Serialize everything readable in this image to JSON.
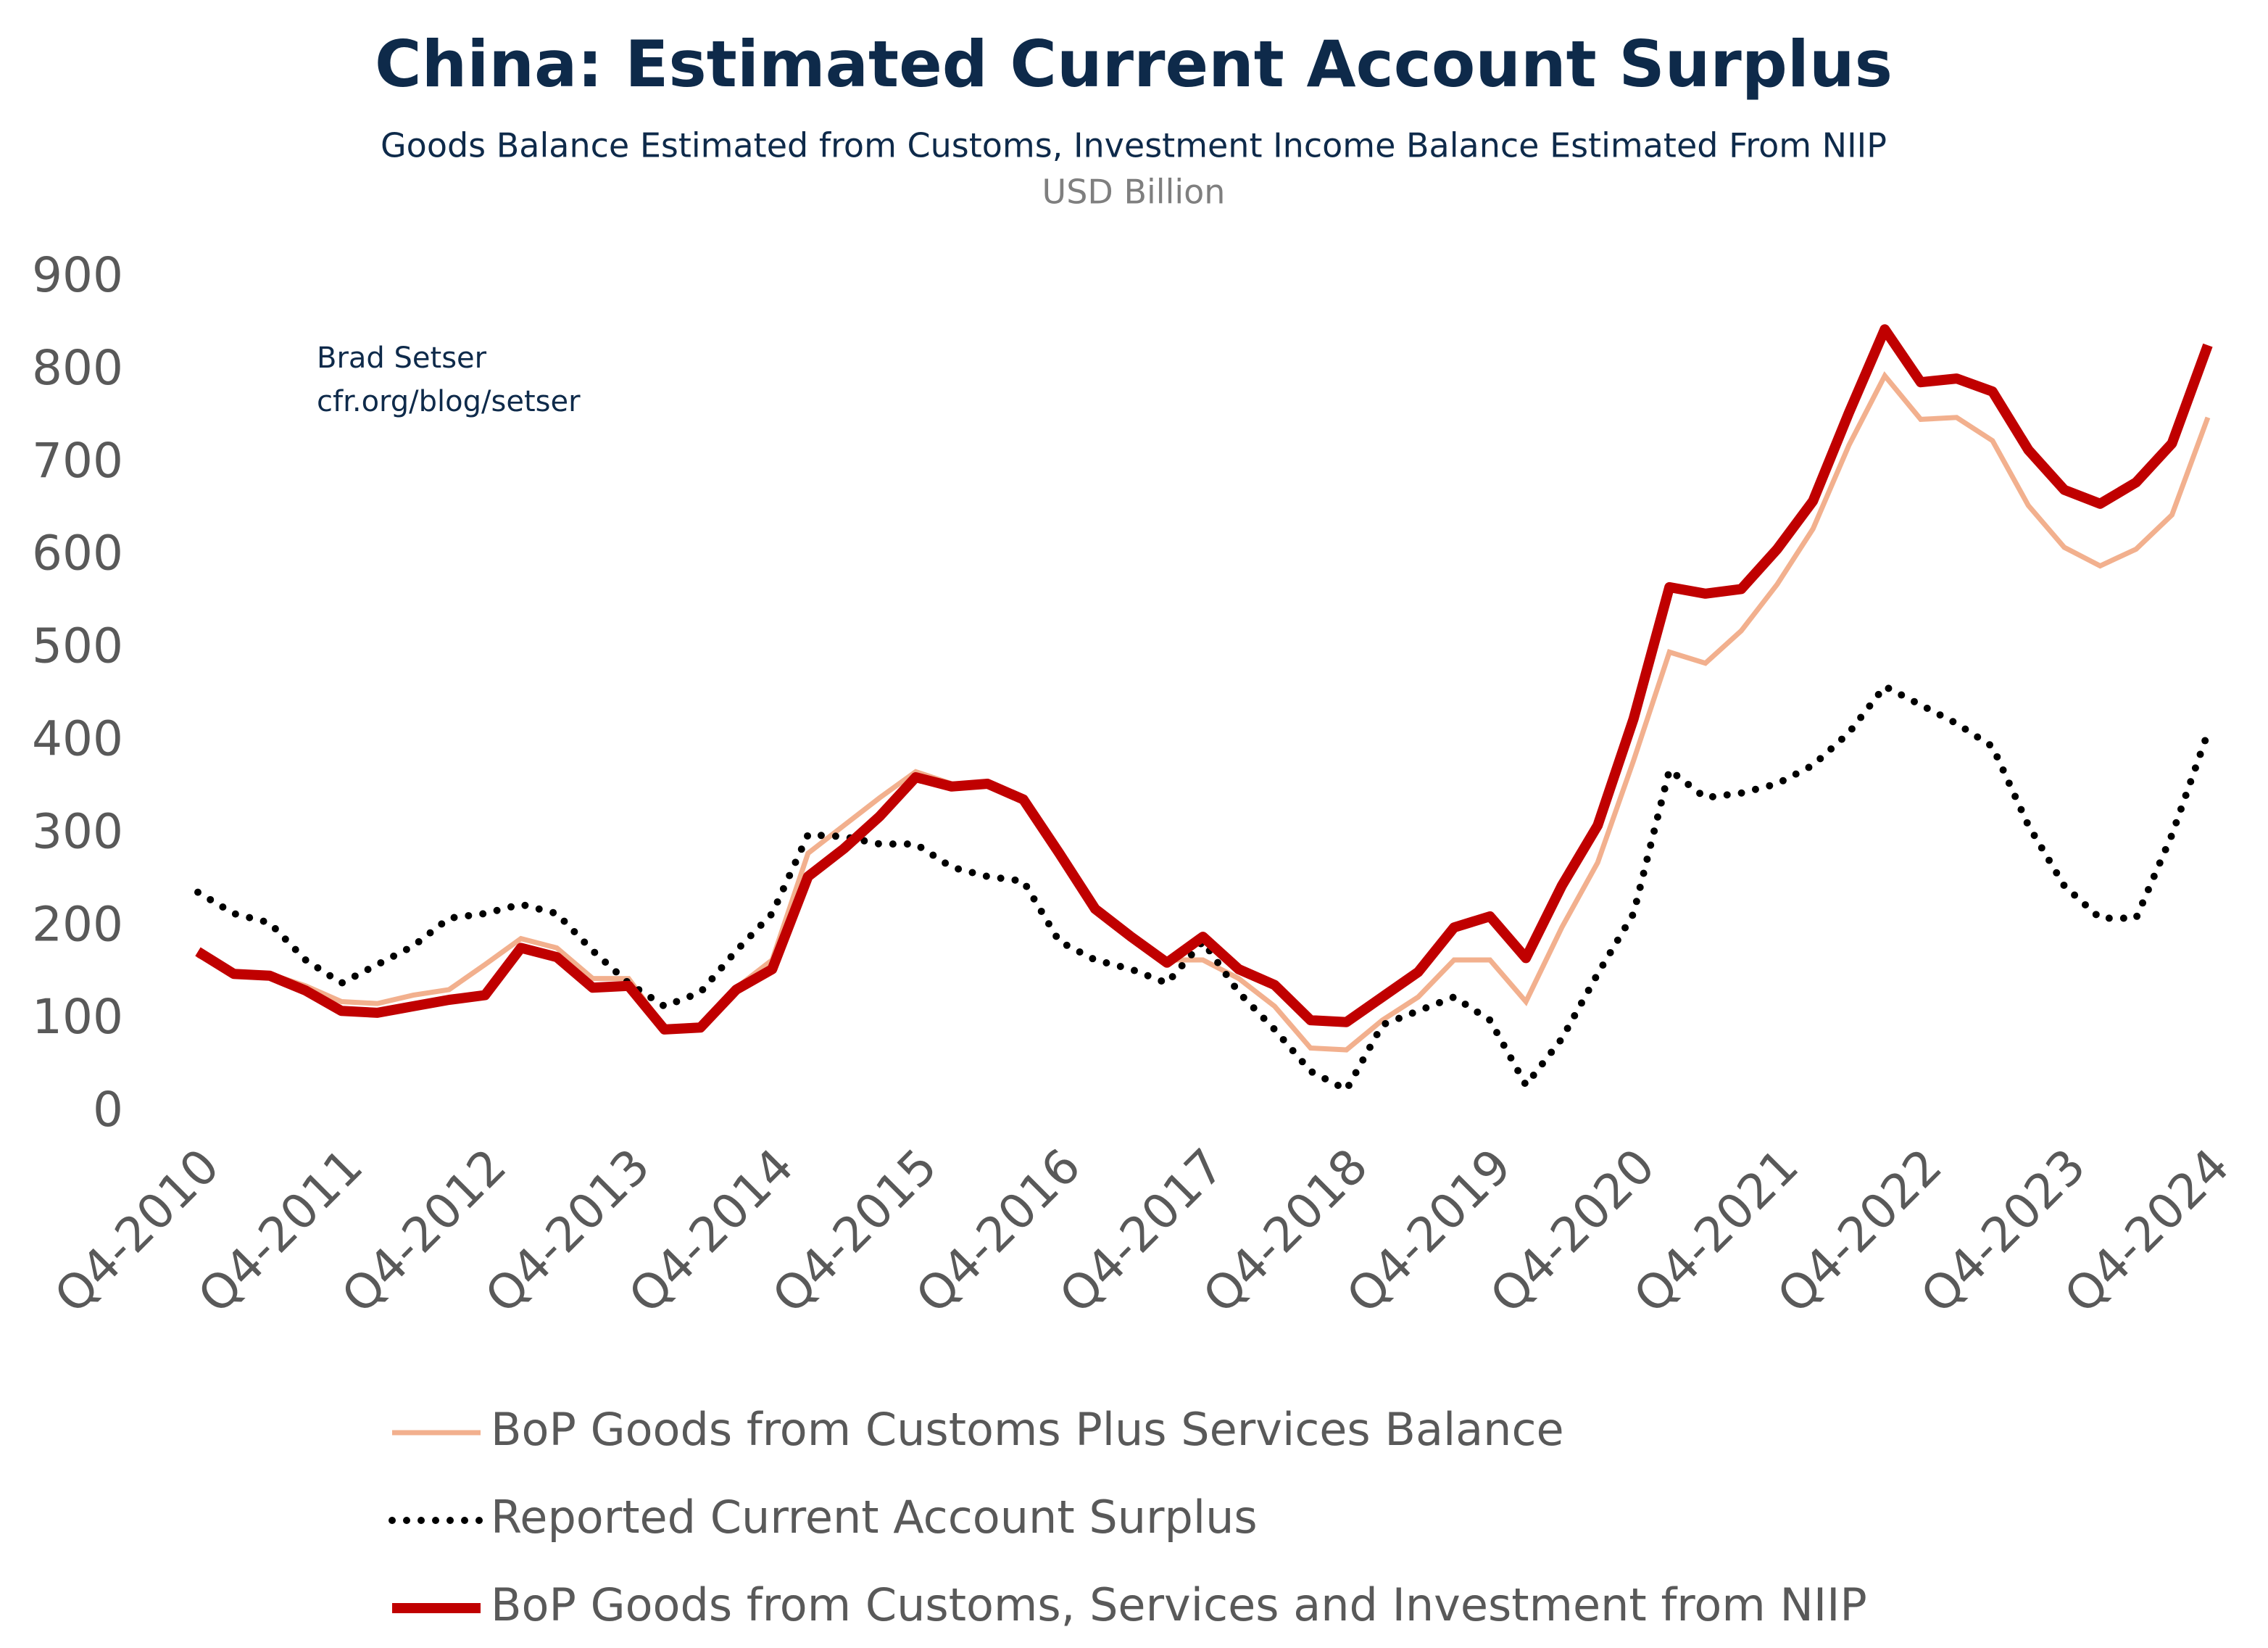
{
  "chart_data": {
    "type": "line",
    "title": "China: Estimated Current Account Surplus",
    "subtitle": "Goods Balance Estimated from Customs, Investment Income Balance Estimated From NIIP",
    "unit": "USD Billion",
    "annotation": [
      "Brad Setser",
      "cfr.org/blog/setser"
    ],
    "categories": [
      "Q4-2010",
      null,
      null,
      null,
      "Q4-2011",
      null,
      null,
      null,
      "Q4-2012",
      null,
      null,
      null,
      "Q4-2013",
      null,
      null,
      null,
      "Q4-2014",
      null,
      null,
      null,
      "Q4-2015",
      null,
      null,
      null,
      "Q4-2016",
      null,
      null,
      null,
      "Q4-2017",
      null,
      null,
      null,
      "Q4-2018",
      null,
      null,
      null,
      "Q4-2019",
      null,
      null,
      null,
      "Q4-2020",
      null,
      null,
      null,
      "Q4-2021",
      null,
      null,
      null,
      "Q4-2022",
      null,
      null,
      null,
      "Q4-2023",
      null,
      null,
      null,
      "Q4-2024"
    ],
    "ylim": [
      0,
      900
    ],
    "yticks": [
      0,
      100,
      200,
      300,
      400,
      500,
      600,
      700,
      800,
      900
    ],
    "grid": false,
    "legend": "bottom",
    "series": [
      {
        "name": "BoP Goods from Customs Plus Services Balance",
        "color": "#f2b08e",
        "style": "solid",
        "values": [
          170,
          152,
          150,
          137,
          120,
          118,
          127,
          133,
          160,
          188,
          178,
          145,
          145,
          92,
          95,
          135,
          165,
          280,
          310,
          340,
          368,
          355,
          355,
          338,
          280,
          220,
          190,
          165,
          165,
          145,
          115,
          70,
          68,
          100,
          125,
          165,
          165,
          120,
          200,
          270,
          380,
          497,
          485,
          520,
          570,
          630,
          720,
          795,
          748,
          750,
          725,
          655,
          610,
          590,
          608,
          645,
          750
        ]
      },
      {
        "name": "Reported Current Account Surplus",
        "color": "#000000",
        "style": "dotted",
        "values": [
          238,
          215,
          205,
          165,
          140,
          160,
          180,
          210,
          215,
          225,
          215,
          175,
          140,
          115,
          130,
          175,
          215,
          300,
          298,
          290,
          290,
          265,
          255,
          250,
          185,
          165,
          155,
          140,
          185,
          130,
          90,
          45,
          25,
          95,
          110,
          125,
          100,
          30,
          80,
          150,
          215,
          370,
          340,
          345,
          355,
          375,
          410,
          460,
          440,
          420,
          395,
          310,
          245,
          210,
          210,
          300,
          410
        ]
      },
      {
        "name": "BoP Goods from Customs, Services and Investment from NIIP",
        "color": "#c00000",
        "style": "thick",
        "values": [
          174,
          150,
          148,
          132,
          110,
          108,
          115,
          122,
          127,
          178,
          168,
          135,
          137,
          90,
          92,
          133,
          155,
          255,
          285,
          320,
          362,
          352,
          355,
          338,
          280,
          220,
          190,
          162,
          190,
          155,
          138,
          100,
          98,
          125,
          152,
          200,
          212,
          167,
          245,
          310,
          425,
          567,
          560,
          565,
          608,
          660,
          755,
          845,
          788,
          792,
          778,
          715,
          672,
          657,
          680,
          722,
          828
        ]
      }
    ]
  }
}
